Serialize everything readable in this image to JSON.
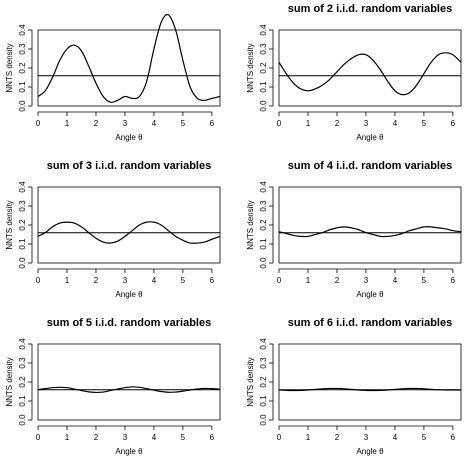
{
  "chart_data": [
    {
      "type": "line",
      "title": "",
      "xlabel": "Angle θ",
      "ylabel": "NNTS density",
      "xlim": [
        0,
        6.28
      ],
      "ylim": [
        0,
        0.4
      ],
      "xticks": [
        0,
        1,
        2,
        3,
        4,
        5,
        6
      ],
      "yticks": [
        0.0,
        0.1,
        0.2,
        0.3,
        0.4
      ],
      "grid": false,
      "reference_line": 0.159,
      "x": [
        0,
        0.25,
        0.5,
        0.75,
        1.0,
        1.25,
        1.5,
        1.75,
        2.0,
        2.25,
        2.5,
        2.75,
        3.0,
        3.25,
        3.5,
        3.75,
        4.0,
        4.25,
        4.5,
        4.75,
        5.0,
        5.25,
        5.5,
        5.75,
        6.0,
        6.28
      ],
      "values": [
        0.05,
        0.08,
        0.15,
        0.24,
        0.3,
        0.32,
        0.29,
        0.21,
        0.12,
        0.05,
        0.02,
        0.03,
        0.05,
        0.04,
        0.05,
        0.13,
        0.3,
        0.44,
        0.48,
        0.4,
        0.24,
        0.1,
        0.04,
        0.03,
        0.04,
        0.05
      ]
    },
    {
      "type": "line",
      "title": "sum of 2 i.i.d. random variables",
      "xlabel": "Angle θ",
      "ylabel": "NNTS density",
      "xlim": [
        0,
        6.28
      ],
      "ylim": [
        0,
        0.4
      ],
      "xticks": [
        0,
        1,
        2,
        3,
        4,
        5,
        6
      ],
      "yticks": [
        0.0,
        0.1,
        0.2,
        0.3,
        0.4
      ],
      "grid": false,
      "reference_line": 0.159,
      "x": [
        0,
        0.25,
        0.5,
        0.75,
        1.0,
        1.25,
        1.5,
        1.75,
        2.0,
        2.25,
        2.5,
        2.75,
        3.0,
        3.25,
        3.5,
        3.75,
        4.0,
        4.25,
        4.5,
        4.75,
        5.0,
        5.25,
        5.5,
        5.75,
        6.0,
        6.28
      ],
      "values": [
        0.23,
        0.17,
        0.12,
        0.09,
        0.08,
        0.09,
        0.11,
        0.14,
        0.18,
        0.22,
        0.25,
        0.27,
        0.27,
        0.24,
        0.19,
        0.13,
        0.08,
        0.06,
        0.07,
        0.11,
        0.17,
        0.23,
        0.27,
        0.28,
        0.27,
        0.23
      ]
    },
    {
      "type": "line",
      "title": "sum of 3 i.i.d. random variables",
      "xlabel": "Angle θ",
      "ylabel": "NNTS density",
      "xlim": [
        0,
        6.28
      ],
      "ylim": [
        0,
        0.4
      ],
      "xticks": [
        0,
        1,
        2,
        3,
        4,
        5,
        6
      ],
      "yticks": [
        0.0,
        0.1,
        0.2,
        0.3,
        0.4
      ],
      "grid": false,
      "reference_line": 0.159,
      "x": [
        0,
        0.25,
        0.5,
        0.75,
        1.0,
        1.25,
        1.5,
        1.75,
        2.0,
        2.25,
        2.5,
        2.75,
        3.0,
        3.25,
        3.5,
        3.75,
        4.0,
        4.25,
        4.5,
        4.75,
        5.0,
        5.25,
        5.5,
        5.75,
        6.0,
        6.28
      ],
      "values": [
        0.14,
        0.16,
        0.19,
        0.21,
        0.215,
        0.21,
        0.19,
        0.16,
        0.13,
        0.11,
        0.105,
        0.115,
        0.14,
        0.17,
        0.2,
        0.215,
        0.215,
        0.2,
        0.17,
        0.14,
        0.12,
        0.105,
        0.105,
        0.11,
        0.125,
        0.14
      ]
    },
    {
      "type": "line",
      "title": "sum of 4 i.i.d. random variables",
      "xlabel": "Angle θ",
      "ylabel": "NNTS density",
      "xlim": [
        0,
        6.28
      ],
      "ylim": [
        0,
        0.4
      ],
      "xticks": [
        0,
        1,
        2,
        3,
        4,
        5,
        6
      ],
      "yticks": [
        0.0,
        0.1,
        0.2,
        0.3,
        0.4
      ],
      "grid": false,
      "reference_line": 0.159,
      "x": [
        0,
        0.25,
        0.5,
        0.75,
        1.0,
        1.25,
        1.5,
        1.75,
        2.0,
        2.25,
        2.5,
        2.75,
        3.0,
        3.25,
        3.5,
        3.75,
        4.0,
        4.25,
        4.5,
        4.75,
        5.0,
        5.25,
        5.5,
        5.75,
        6.0,
        6.28
      ],
      "values": [
        0.165,
        0.155,
        0.145,
        0.14,
        0.14,
        0.15,
        0.16,
        0.175,
        0.185,
        0.19,
        0.185,
        0.175,
        0.16,
        0.15,
        0.14,
        0.14,
        0.145,
        0.155,
        0.17,
        0.18,
        0.19,
        0.19,
        0.185,
        0.18,
        0.17,
        0.165
      ]
    },
    {
      "type": "line",
      "title": "sum of 5 i.i.d. random variables",
      "xlabel": "Angle θ",
      "ylabel": "NNTS density",
      "xlim": [
        0,
        6.28
      ],
      "ylim": [
        0,
        0.4
      ],
      "xticks": [
        0,
        1,
        2,
        3,
        4,
        5,
        6
      ],
      "yticks": [
        0.0,
        0.1,
        0.2,
        0.3,
        0.4
      ],
      "grid": false,
      "reference_line": 0.159,
      "x": [
        0,
        0.25,
        0.5,
        0.75,
        1.0,
        1.25,
        1.5,
        1.75,
        2.0,
        2.25,
        2.5,
        2.75,
        3.0,
        3.25,
        3.5,
        3.75,
        4.0,
        4.25,
        4.5,
        4.75,
        5.0,
        5.25,
        5.5,
        5.75,
        6.0,
        6.28
      ],
      "values": [
        0.16,
        0.165,
        0.17,
        0.172,
        0.17,
        0.163,
        0.155,
        0.148,
        0.145,
        0.147,
        0.155,
        0.163,
        0.17,
        0.174,
        0.172,
        0.165,
        0.157,
        0.15,
        0.146,
        0.147,
        0.152,
        0.158,
        0.163,
        0.166,
        0.165,
        0.162
      ]
    },
    {
      "type": "line",
      "title": "sum of 6 i.i.d. random variables",
      "xlabel": "Angle θ",
      "ylabel": "NNTS density",
      "xlim": [
        0,
        6.28
      ],
      "ylim": [
        0,
        0.4
      ],
      "xticks": [
        0,
        1,
        2,
        3,
        4,
        5,
        6
      ],
      "yticks": [
        0.0,
        0.1,
        0.2,
        0.3,
        0.4
      ],
      "grid": false,
      "reference_line": 0.159,
      "x": [
        0,
        0.25,
        0.5,
        0.75,
        1.0,
        1.25,
        1.5,
        1.75,
        2.0,
        2.25,
        2.5,
        2.75,
        3.0,
        3.25,
        3.5,
        3.75,
        4.0,
        4.25,
        4.5,
        4.75,
        5.0,
        5.25,
        5.5,
        5.75,
        6.0,
        6.28
      ],
      "values": [
        0.158,
        0.156,
        0.155,
        0.156,
        0.158,
        0.161,
        0.164,
        0.166,
        0.166,
        0.164,
        0.161,
        0.158,
        0.156,
        0.155,
        0.156,
        0.158,
        0.161,
        0.164,
        0.166,
        0.166,
        0.164,
        0.161,
        0.159,
        0.158,
        0.158,
        0.158
      ]
    }
  ]
}
